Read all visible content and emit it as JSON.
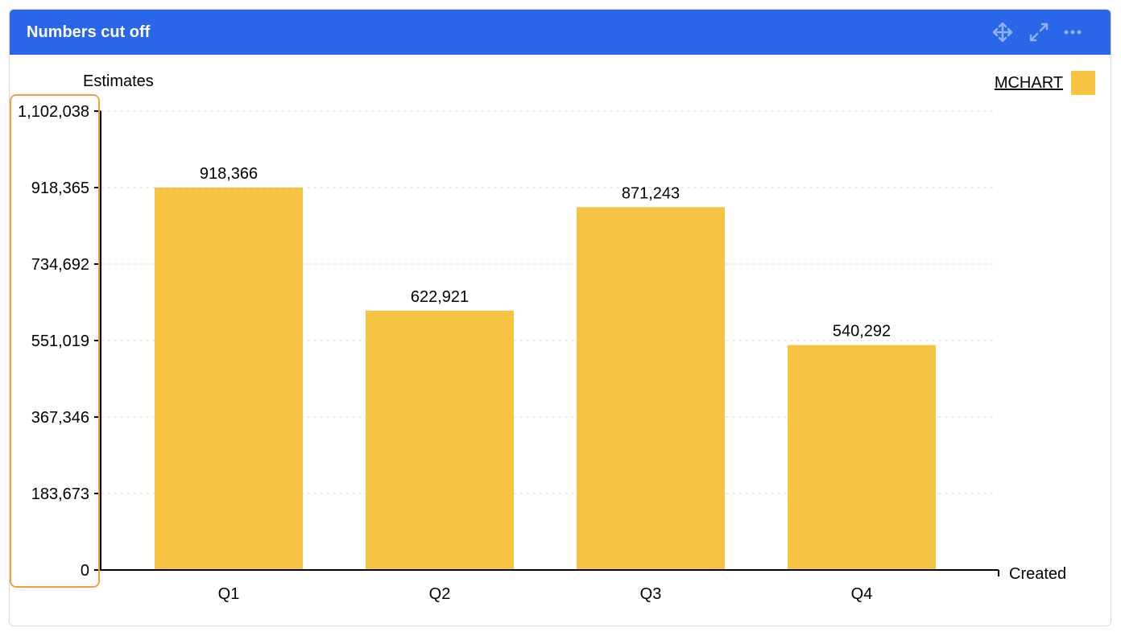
{
  "panel": {
    "title": "Numbers cut off",
    "header_color": "#2a66e8",
    "icons": [
      "move-icon",
      "expand-icon",
      "more-icon"
    ]
  },
  "chart_data": {
    "type": "bar",
    "categories": [
      "Q1",
      "Q2",
      "Q3",
      "Q4"
    ],
    "series": [
      {
        "name": "MCHART",
        "values": [
          918366,
          622921,
          871243,
          540292
        ],
        "color": "#f6c343"
      }
    ],
    "data_labels": [
      "918,366",
      "622,921",
      "871,243",
      "540,292"
    ],
    "ylabel": "Estimates",
    "xlabel": "Created",
    "ylim": [
      0,
      1102038
    ],
    "yticks": [
      0,
      183673,
      367346,
      551019,
      734692,
      918365,
      1102038
    ],
    "ytick_labels": [
      "0",
      "183,673",
      "367,346",
      "551,019",
      "734,692",
      "918,365",
      "1,102,038"
    ],
    "grid": true,
    "legend": {
      "label": "MCHART",
      "placement": "top-right"
    },
    "highlight_color": "#f0a040"
  }
}
